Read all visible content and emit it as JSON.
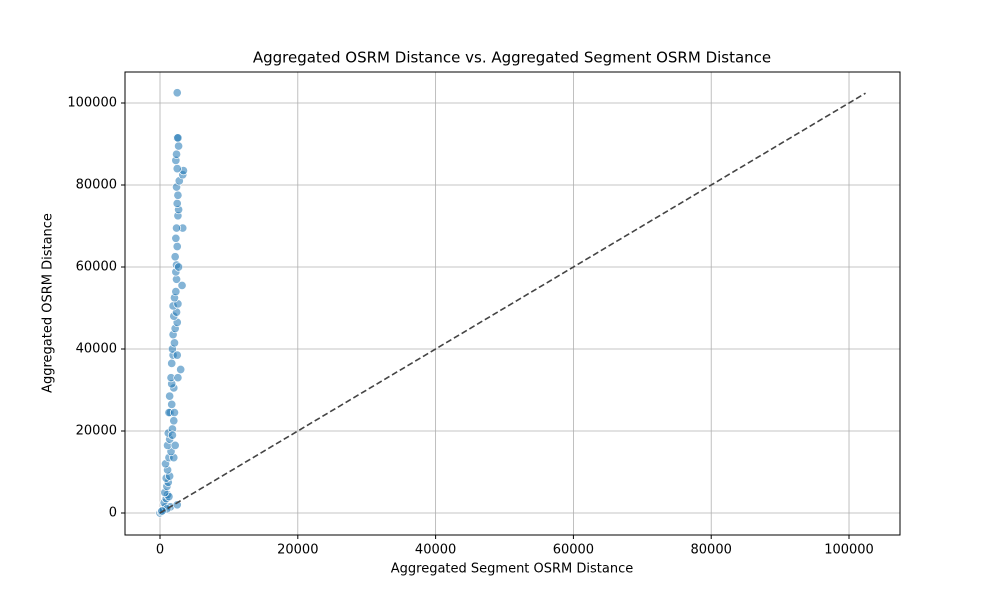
{
  "chart_data": {
    "type": "scatter",
    "title": "Aggregated OSRM Distance vs. Aggregated Segment OSRM Distance",
    "x_label": "Aggregated Segment OSRM Distance",
    "y_label": "Aggregated OSRM Distance",
    "xlim": [
      -5080,
      107400
    ],
    "ylim": [
      -5366,
      107560
    ],
    "xticks": [
      0,
      20000,
      40000,
      60000,
      80000,
      100000
    ],
    "yticks": [
      0,
      20000,
      40000,
      60000,
      80000,
      100000
    ],
    "grid": true,
    "color": "#1f77b4",
    "x": [
      0,
      200,
      500,
      800,
      600,
      900,
      1100,
      1300,
      700,
      1000,
      1200,
      900,
      1400,
      1100,
      800,
      1300,
      2000,
      1600,
      1100,
      2200,
      1400,
      1200,
      1800,
      2000,
      1500,
      1300,
      2100,
      1700,
      1400,
      2000,
      1700,
      1600,
      2600,
      3000,
      1700,
      1900,
      1800,
      2100,
      1900,
      2200,
      2500,
      2000,
      2400,
      1900,
      2600,
      2100,
      2300,
      3200,
      2400,
      2300,
      2400,
      2200,
      2500,
      2300,
      3300,
      2400,
      2600,
      2700,
      2500,
      2600,
      2400,
      2800,
      3300,
      3400,
      2500,
      2300,
      2400,
      2700,
      2500,
      2600,
      2500,
      1500,
      2500,
      1000,
      300,
      1800,
      2500,
      2700
    ],
    "y": [
      0,
      300,
      800,
      1500,
      2500,
      3500,
      4500,
      4000,
      5000,
      6500,
      7500,
      8500,
      9000,
      10500,
      12000,
      13500,
      13500,
      15000,
      16500,
      16500,
      18000,
      19500,
      20500,
      22500,
      24500,
      24500,
      24500,
      26500,
      28500,
      30500,
      31500,
      33000,
      33000,
      35000,
      36500,
      38500,
      40000,
      41500,
      43500,
      45000,
      46500,
      48000,
      49000,
      50500,
      51000,
      52500,
      54000,
      55500,
      57000,
      58800,
      60500,
      62500,
      65000,
      67000,
      69500,
      69500,
      72500,
      74000,
      75500,
      77500,
      79500,
      81000,
      82500,
      83500,
      84000,
      86000,
      87500,
      89500,
      91500,
      91500,
      102500,
      1500,
      2000,
      1000,
      500,
      19000,
      38500,
      60000
    ],
    "reference_line": {
      "x": [
        0,
        102400
      ],
      "y": [
        0,
        102400
      ],
      "color": "#444444"
    }
  }
}
